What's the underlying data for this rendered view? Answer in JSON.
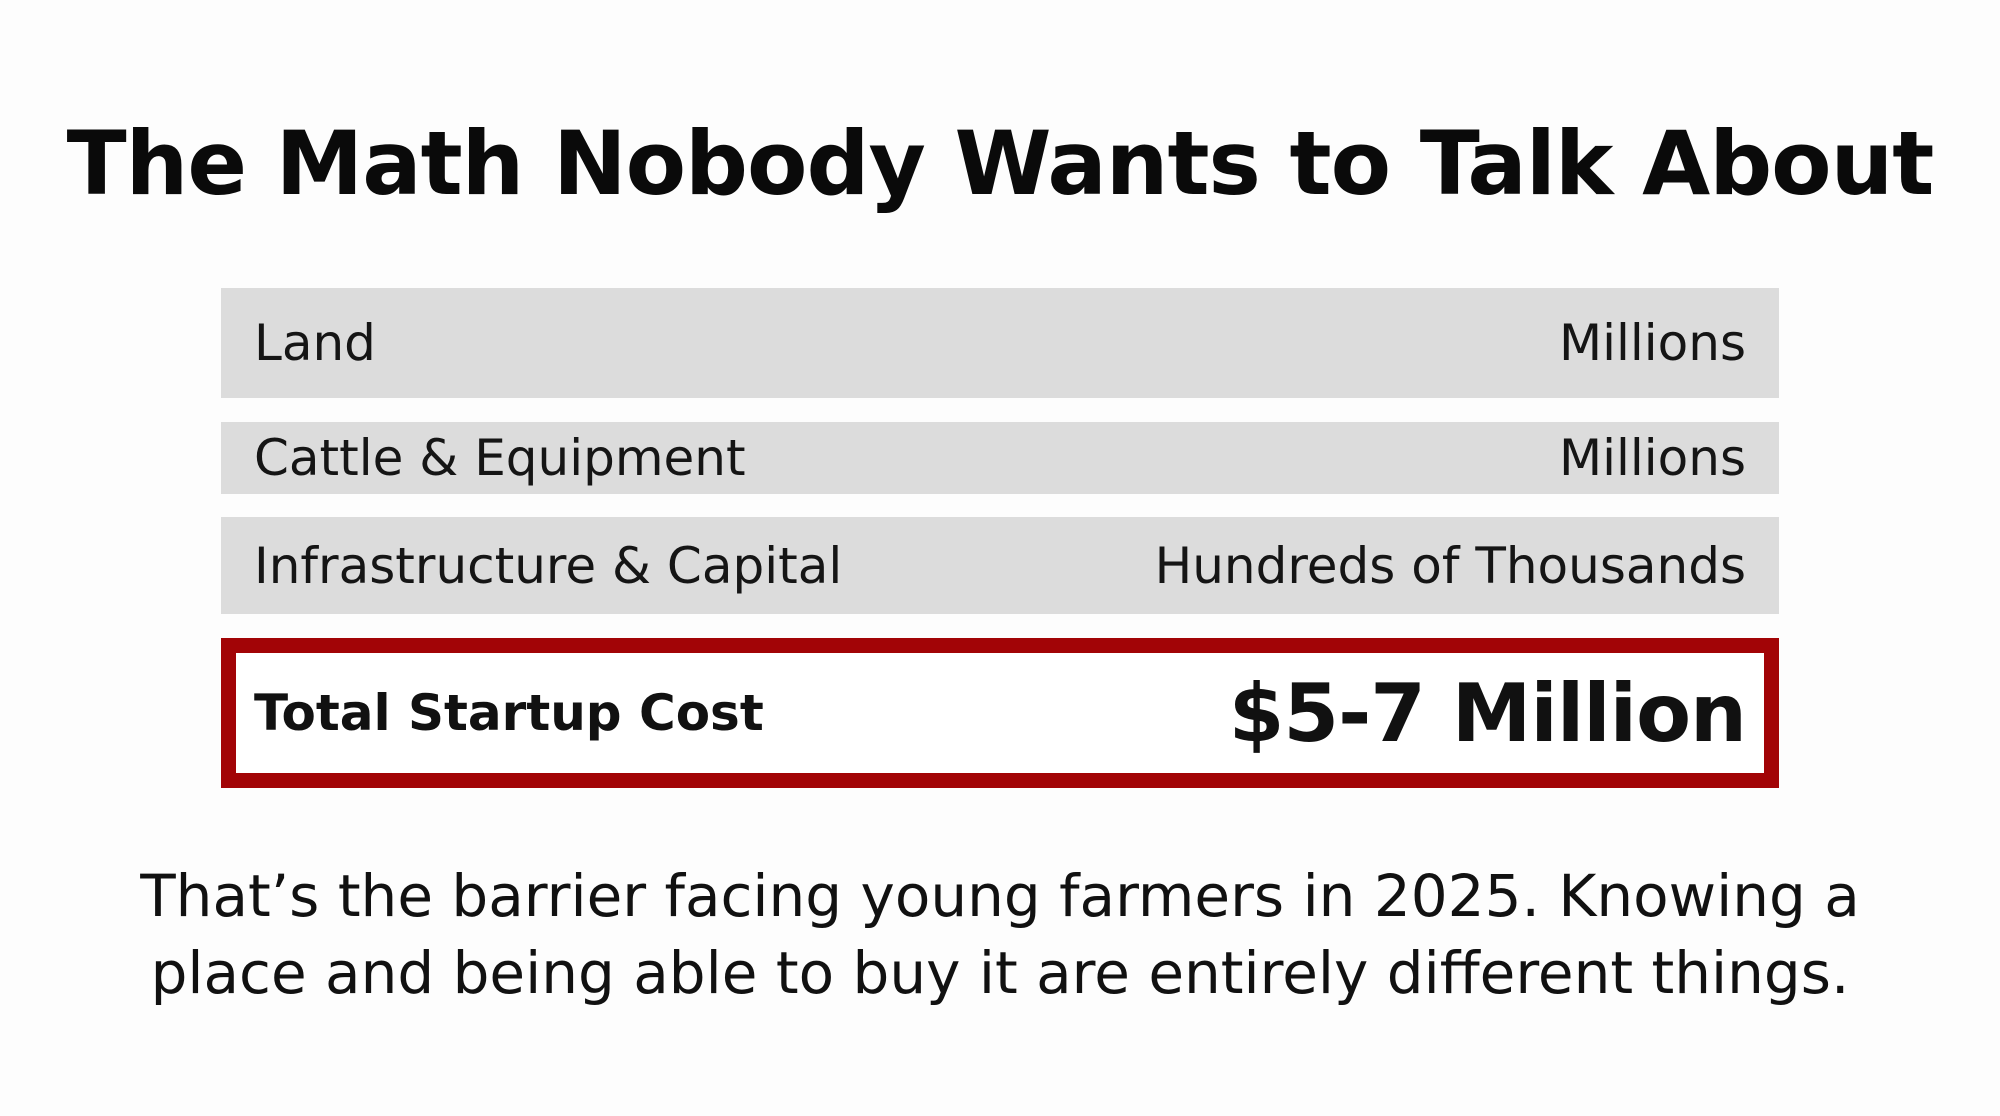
{
  "title": "The Math Nobody Wants to Talk About",
  "rows": [
    {
      "label": "Land",
      "value": "Millions"
    },
    {
      "label": "Cattle & Equipment",
      "value": "Millions"
    },
    {
      "label": "Infrastructure & Capital",
      "value": "Hundreds of Thousands"
    }
  ],
  "total": {
    "label": "Total Startup Cost",
    "value": "$5-7 Million"
  },
  "summary": {
    "line1": "That’s the barrier facing young farmers in 2025. Knowing a",
    "line2": "place and being able to buy it are entirely different things."
  },
  "colors": {
    "accent": "#a20406",
    "row_bg": "#dcdcdc"
  }
}
